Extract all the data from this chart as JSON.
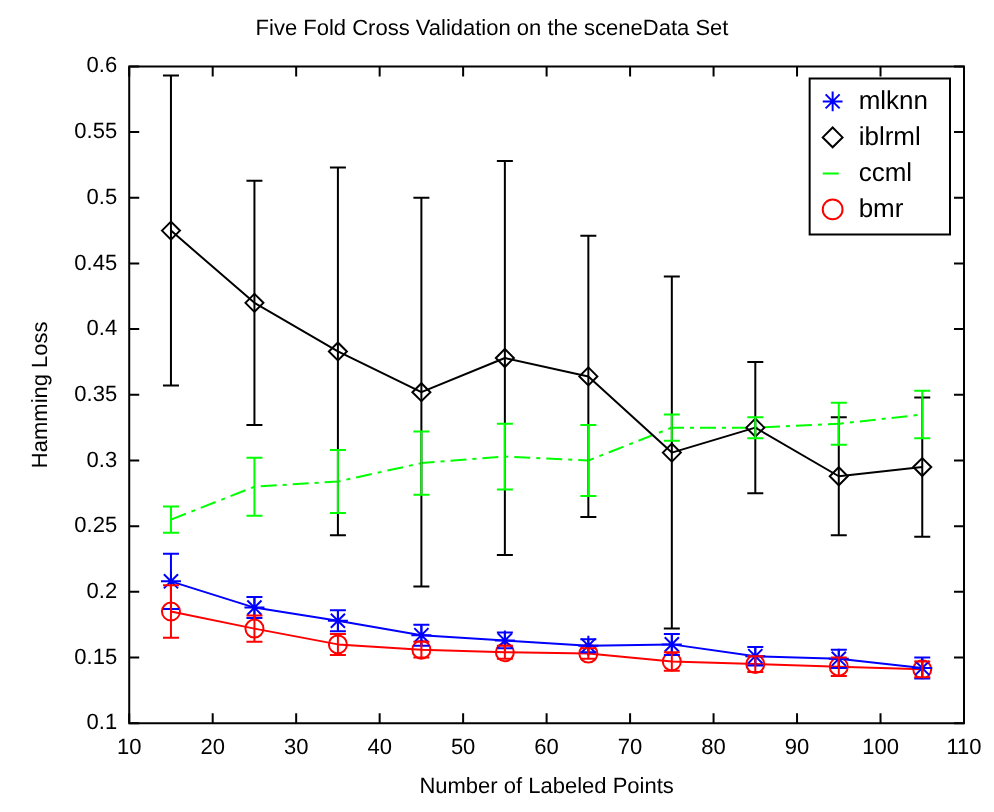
{
  "chart_data": {
    "type": "line",
    "title": "Five Fold Cross Validation on the sceneData Set",
    "xlabel": "Number of Labeled Points",
    "ylabel": "Hamming Loss",
    "x": [
      15,
      25,
      35,
      45,
      55,
      65,
      75,
      85,
      95,
      105
    ],
    "xlim": [
      10,
      110
    ],
    "xticks": [
      10,
      20,
      30,
      40,
      50,
      60,
      70,
      80,
      90,
      100,
      110
    ],
    "ylim": [
      0.1,
      0.6
    ],
    "yticks": [
      0.1,
      0.15,
      0.2,
      0.25,
      0.3,
      0.35,
      0.4,
      0.45,
      0.5,
      0.55,
      0.6
    ],
    "grid": false,
    "legend": "top right",
    "series": [
      {
        "name": "mlknn",
        "color": "#0000ff",
        "marker": "cross",
        "line_style": "solid",
        "values": [
          0.208,
          0.188,
          0.178,
          0.167,
          0.163,
          0.159,
          0.16,
          0.151,
          0.149,
          0.142
        ],
        "errors": [
          0.021,
          0.008,
          0.008,
          0.008,
          0.006,
          0.005,
          0.008,
          0.007,
          0.007,
          0.008
        ]
      },
      {
        "name": "iblrml",
        "color": "#000000",
        "marker": "diamond",
        "line_style": "solid",
        "values": [
          0.475,
          0.42,
          0.383,
          0.352,
          0.378,
          0.364,
          0.306,
          0.325,
          0.288,
          0.295
        ],
        "errors": [
          0.118,
          0.093,
          0.14,
          0.148,
          0.15,
          0.107,
          0.134,
          0.05,
          0.045,
          0.053
        ]
      },
      {
        "name": "ccml",
        "color": "#00ff00",
        "marker": "none",
        "line_style": "dashed",
        "values": [
          0.255,
          0.28,
          0.284,
          0.298,
          0.303,
          0.3,
          0.325,
          0.325,
          0.328,
          0.335
        ],
        "errors": [
          0.01,
          0.022,
          0.024,
          0.024,
          0.025,
          0.027,
          0.01,
          0.008,
          0.016,
          0.018
        ]
      },
      {
        "name": "bmr",
        "color": "#ff0000",
        "marker": "circle",
        "line_style": "solid",
        "values": [
          0.185,
          0.172,
          0.16,
          0.156,
          0.154,
          0.153,
          0.147,
          0.145,
          0.143,
          0.141
        ],
        "errors": [
          0.02,
          0.01,
          0.008,
          0.006,
          0.005,
          0.004,
          0.007,
          0.006,
          0.007,
          0.006
        ]
      }
    ]
  }
}
